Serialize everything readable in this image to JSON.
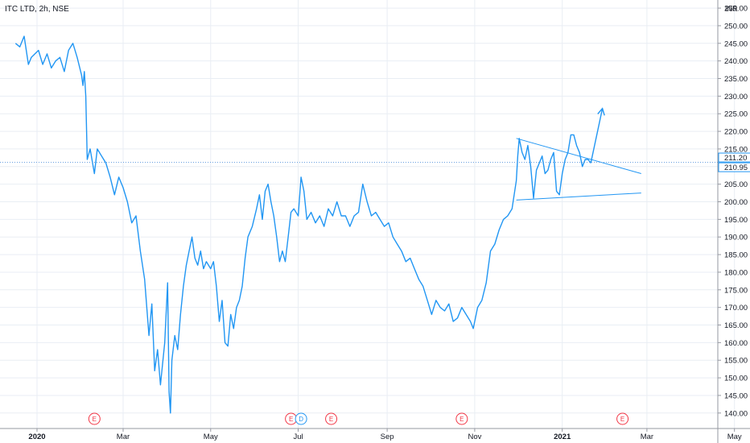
{
  "header": {
    "symbol": "ITC LTD, 2h, NSE",
    "currency": "INR"
  },
  "colors": {
    "line": "#2196f3",
    "grid": "#e9eef4",
    "axis": "#9598a1",
    "earnings": "#f23645",
    "dividend": "#2196f3",
    "crosshair": "#6aa0e0"
  },
  "chart_data": {
    "type": "line",
    "title": "ITC LTD, 2h, NSE",
    "xlabel": "",
    "ylabel": "INR",
    "ylim": [
      137.5,
      256
    ],
    "grid": true,
    "y_ticks": [
      140,
      145,
      150,
      155,
      160,
      165,
      170,
      175,
      180,
      185,
      190,
      195,
      200,
      205,
      210,
      215,
      220,
      225,
      230,
      235,
      240,
      245,
      250,
      255
    ],
    "y_tick_labels": [
      "140.00",
      "145.00",
      "150.00",
      "155.00",
      "160.00",
      "165.00",
      "170.00",
      "175.00",
      "180.00",
      "185.00",
      "190.00",
      "195.00",
      "200.00",
      "205.00",
      "210.00",
      "215.00",
      "220.00",
      "225.00",
      "230.00",
      "235.00",
      "240.00",
      "245.00",
      "250.00",
      "255.00"
    ],
    "x_labels": [
      {
        "date": "2020-01-01",
        "label": "2020",
        "bold": true
      },
      {
        "date": "2020-03-01",
        "label": "Mar"
      },
      {
        "date": "2020-05-01",
        "label": "May"
      },
      {
        "date": "2020-07-01",
        "label": "Jul"
      },
      {
        "date": "2020-09-01",
        "label": "Sep"
      },
      {
        "date": "2020-11-01",
        "label": "Nov"
      },
      {
        "date": "2021-01-01",
        "label": "2021",
        "bold": true
      },
      {
        "date": "2021-03-01",
        "label": "Mar"
      },
      {
        "date": "2021-05-01",
        "label": "May"
      }
    ],
    "series": [
      {
        "name": "ITC",
        "points": [
          [
            "2019-12-17",
            245
          ],
          [
            "2019-12-20",
            244
          ],
          [
            "2019-12-23",
            247
          ],
          [
            "2019-12-26",
            239
          ],
          [
            "2019-12-28",
            241
          ],
          [
            "2020-01-02",
            243
          ],
          [
            "2020-01-05",
            239
          ],
          [
            "2020-01-08",
            242
          ],
          [
            "2020-01-11",
            238
          ],
          [
            "2020-01-14",
            240
          ],
          [
            "2020-01-17",
            241
          ],
          [
            "2020-01-20",
            237
          ],
          [
            "2020-01-23",
            243
          ],
          [
            "2020-01-26",
            245
          ],
          [
            "2020-01-29",
            241
          ],
          [
            "2020-02-01",
            236
          ],
          [
            "2020-02-02",
            233
          ],
          [
            "2020-02-03",
            237
          ],
          [
            "2020-02-04",
            230
          ],
          [
            "2020-02-05",
            212
          ],
          [
            "2020-02-07",
            215
          ],
          [
            "2020-02-10",
            208
          ],
          [
            "2020-02-12",
            215
          ],
          [
            "2020-02-15",
            213
          ],
          [
            "2020-02-18",
            211
          ],
          [
            "2020-02-21",
            207
          ],
          [
            "2020-02-24",
            202
          ],
          [
            "2020-02-27",
            207
          ],
          [
            "2020-03-01",
            204
          ],
          [
            "2020-03-04",
            200
          ],
          [
            "2020-03-07",
            194
          ],
          [
            "2020-03-10",
            196
          ],
          [
            "2020-03-13",
            186
          ],
          [
            "2020-03-16",
            178
          ],
          [
            "2020-03-19",
            162
          ],
          [
            "2020-03-21",
            171
          ],
          [
            "2020-03-23",
            152
          ],
          [
            "2020-03-25",
            158
          ],
          [
            "2020-03-27",
            148
          ],
          [
            "2020-03-30",
            160
          ],
          [
            "2020-04-01",
            177
          ],
          [
            "2020-04-02",
            146
          ],
          [
            "2020-04-03",
            140
          ],
          [
            "2020-04-04",
            155
          ],
          [
            "2020-04-06",
            162
          ],
          [
            "2020-04-08",
            158
          ],
          [
            "2020-04-10",
            168
          ],
          [
            "2020-04-12",
            176
          ],
          [
            "2020-04-14",
            182
          ],
          [
            "2020-04-16",
            186
          ],
          [
            "2020-04-18",
            190
          ],
          [
            "2020-04-20",
            184
          ],
          [
            "2020-04-22",
            182
          ],
          [
            "2020-04-24",
            186
          ],
          [
            "2020-04-26",
            181
          ],
          [
            "2020-04-28",
            183
          ],
          [
            "2020-05-01",
            181
          ],
          [
            "2020-05-03",
            183
          ],
          [
            "2020-05-05",
            176
          ],
          [
            "2020-05-07",
            166
          ],
          [
            "2020-05-09",
            172
          ],
          [
            "2020-05-11",
            160
          ],
          [
            "2020-05-13",
            159
          ],
          [
            "2020-05-15",
            168
          ],
          [
            "2020-05-17",
            164
          ],
          [
            "2020-05-19",
            170
          ],
          [
            "2020-05-21",
            172
          ],
          [
            "2020-05-23",
            176
          ],
          [
            "2020-05-25",
            184
          ],
          [
            "2020-05-27",
            190
          ],
          [
            "2020-05-30",
            193
          ],
          [
            "2020-06-02",
            198
          ],
          [
            "2020-06-04",
            202
          ],
          [
            "2020-06-06",
            195
          ],
          [
            "2020-06-08",
            203
          ],
          [
            "2020-06-10",
            205
          ],
          [
            "2020-06-12",
            200
          ],
          [
            "2020-06-14",
            196
          ],
          [
            "2020-06-16",
            190
          ],
          [
            "2020-06-18",
            183
          ],
          [
            "2020-06-20",
            186
          ],
          [
            "2020-06-22",
            183
          ],
          [
            "2020-06-24",
            190
          ],
          [
            "2020-06-26",
            197
          ],
          [
            "2020-06-28",
            198
          ],
          [
            "2020-07-01",
            196
          ],
          [
            "2020-07-03",
            207
          ],
          [
            "2020-07-05",
            203
          ],
          [
            "2020-07-07",
            195
          ],
          [
            "2020-07-10",
            197
          ],
          [
            "2020-07-13",
            194
          ],
          [
            "2020-07-16",
            196
          ],
          [
            "2020-07-19",
            193
          ],
          [
            "2020-07-22",
            198
          ],
          [
            "2020-07-25",
            196
          ],
          [
            "2020-07-28",
            200
          ],
          [
            "2020-07-31",
            196
          ],
          [
            "2020-08-03",
            196
          ],
          [
            "2020-08-06",
            193
          ],
          [
            "2020-08-09",
            196
          ],
          [
            "2020-08-12",
            197
          ],
          [
            "2020-08-15",
            205
          ],
          [
            "2020-08-18",
            200
          ],
          [
            "2020-08-21",
            196
          ],
          [
            "2020-08-24",
            197
          ],
          [
            "2020-08-27",
            195
          ],
          [
            "2020-08-30",
            193
          ],
          [
            "2020-09-02",
            194
          ],
          [
            "2020-09-05",
            190
          ],
          [
            "2020-09-08",
            188
          ],
          [
            "2020-09-11",
            186
          ],
          [
            "2020-09-14",
            183
          ],
          [
            "2020-09-17",
            184
          ],
          [
            "2020-09-20",
            181
          ],
          [
            "2020-09-23",
            178
          ],
          [
            "2020-09-26",
            176
          ],
          [
            "2020-09-29",
            172
          ],
          [
            "2020-10-02",
            168
          ],
          [
            "2020-10-05",
            172
          ],
          [
            "2020-10-08",
            170
          ],
          [
            "2020-10-11",
            169
          ],
          [
            "2020-10-14",
            171
          ],
          [
            "2020-10-17",
            166
          ],
          [
            "2020-10-20",
            167
          ],
          [
            "2020-10-23",
            170
          ],
          [
            "2020-10-26",
            168
          ],
          [
            "2020-10-29",
            166
          ],
          [
            "2020-10-31",
            164
          ],
          [
            "2020-11-03",
            170
          ],
          [
            "2020-11-06",
            172
          ],
          [
            "2020-11-09",
            177
          ],
          [
            "2020-11-12",
            186
          ],
          [
            "2020-11-15",
            188
          ],
          [
            "2020-11-18",
            192
          ],
          [
            "2020-11-21",
            195
          ],
          [
            "2020-11-24",
            196
          ],
          [
            "2020-11-27",
            198
          ],
          [
            "2020-11-30",
            206
          ],
          [
            "2020-12-01",
            213
          ],
          [
            "2020-12-02",
            218
          ],
          [
            "2020-12-04",
            214
          ],
          [
            "2020-12-06",
            212
          ],
          [
            "2020-12-08",
            216
          ],
          [
            "2020-12-10",
            210
          ],
          [
            "2020-12-12",
            201
          ],
          [
            "2020-12-14",
            209
          ],
          [
            "2020-12-16",
            211
          ],
          [
            "2020-12-18",
            213
          ],
          [
            "2020-12-20",
            208
          ],
          [
            "2020-12-22",
            209
          ],
          [
            "2020-12-24",
            212
          ],
          [
            "2020-12-26",
            214
          ],
          [
            "2020-12-28",
            203
          ],
          [
            "2020-12-30",
            202
          ],
          [
            "2021-01-01",
            208
          ],
          [
            "2021-01-03",
            212
          ],
          [
            "2021-01-05",
            214
          ],
          [
            "2021-01-07",
            219
          ],
          [
            "2021-01-09",
            219
          ],
          [
            "2021-01-11",
            216
          ],
          [
            "2021-01-13",
            214
          ],
          [
            "2021-01-15",
            210
          ],
          [
            "2021-01-17",
            212
          ],
          [
            "2021-01-19",
            212
          ],
          [
            "2021-01-21",
            210.95
          ]
        ]
      }
    ],
    "annotations": {
      "trendlines": [
        {
          "from": [
            "2020-11-30",
            218
          ],
          "to": [
            "2021-02-25",
            208
          ]
        },
        {
          "from": [
            "2020-11-30",
            200.5
          ],
          "to": [
            "2021-02-25",
            202.5
          ]
        }
      ],
      "arrow": {
        "from": [
          "2021-01-21",
          211.2
        ],
        "to": [
          "2021-01-29",
          226.5
        ]
      }
    },
    "events": [
      {
        "date": "2020-02-10",
        "label": "E",
        "kind": "earnings"
      },
      {
        "date": "2020-06-26",
        "label": "E",
        "kind": "earnings"
      },
      {
        "date": "2020-07-03",
        "label": "D",
        "kind": "dividend"
      },
      {
        "date": "2020-07-24",
        "label": "E",
        "kind": "earnings"
      },
      {
        "date": "2020-10-23",
        "label": "E",
        "kind": "earnings"
      },
      {
        "date": "2021-02-12",
        "label": "E",
        "kind": "earnings"
      }
    ],
    "price_tags": [
      {
        "value": 211.2,
        "label": "211.20"
      },
      {
        "value": 210.95,
        "label": "210.95"
      }
    ],
    "crosshair_value": 211.2
  }
}
